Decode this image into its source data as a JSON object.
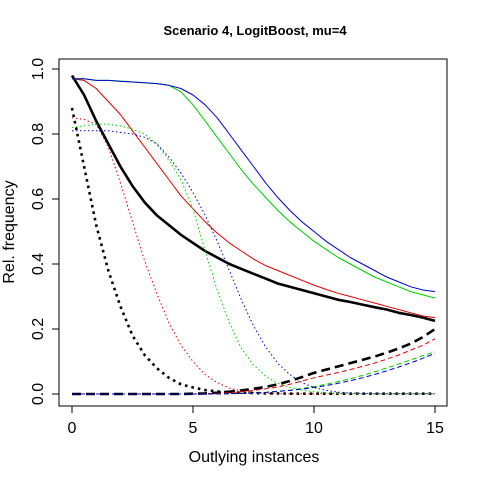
{
  "chart_data": {
    "type": "line",
    "title": "Scenario 4, LogitBoost, mu=4",
    "xlabel": "Outlying instances",
    "ylabel": "Rel. frequency",
    "xlim": [
      0,
      15
    ],
    "ylim": [
      0,
      1
    ],
    "xticks": [
      0,
      5,
      10,
      15
    ],
    "yticks": [
      0.0,
      0.2,
      0.4,
      0.6,
      0.8,
      1.0
    ],
    "xtick_labels": [
      "0",
      "5",
      "10",
      "15"
    ],
    "ytick_labels": [
      "0.0",
      "0.2",
      "0.4",
      "0.6",
      "0.8",
      "1.0"
    ],
    "grid": false,
    "legend": "none",
    "x": [
      0,
      0.5,
      1,
      1.5,
      2,
      2.5,
      3,
      3.5,
      4,
      4.5,
      5,
      5.5,
      6,
      6.5,
      7,
      7.5,
      8,
      8.5,
      9,
      9.5,
      10,
      10.5,
      11,
      11.5,
      12,
      12.5,
      13,
      13.5,
      14,
      14.5,
      15
    ],
    "series": [
      {
        "color": "#000000",
        "style": "solid",
        "weight": "thick",
        "values": [
          0.98,
          0.92,
          0.84,
          0.77,
          0.7,
          0.64,
          0.59,
          0.55,
          0.52,
          0.49,
          0.465,
          0.44,
          0.42,
          0.4,
          0.385,
          0.37,
          0.355,
          0.34,
          0.33,
          0.32,
          0.31,
          0.3,
          0.29,
          0.283,
          0.275,
          0.267,
          0.26,
          0.25,
          0.243,
          0.235,
          0.225
        ]
      },
      {
        "color": "#000000",
        "style": "dotted",
        "weight": "thick",
        "values": [
          0.88,
          0.7,
          0.52,
          0.38,
          0.27,
          0.18,
          0.12,
          0.08,
          0.05,
          0.03,
          0.02,
          0.012,
          0.008,
          0.005,
          0.004,
          0.003,
          0.002,
          0.002,
          0.001,
          0.001,
          0.001,
          0.001,
          0.001,
          0.001,
          0.001,
          0.001,
          0.001,
          0.001,
          0.001,
          0.001,
          0.001
        ]
      },
      {
        "color": "#000000",
        "style": "dashed",
        "weight": "thick",
        "values": [
          0,
          0,
          0,
          0,
          0,
          0,
          0,
          0,
          0,
          0,
          0.001,
          0.002,
          0.004,
          0.007,
          0.011,
          0.016,
          0.022,
          0.03,
          0.04,
          0.052,
          0.065,
          0.075,
          0.085,
          0.095,
          0.105,
          0.115,
          0.127,
          0.14,
          0.155,
          0.175,
          0.2
        ]
      },
      {
        "color": "#dd0000",
        "style": "solid",
        "weight": "thin",
        "values": [
          0.97,
          0.965,
          0.94,
          0.9,
          0.86,
          0.81,
          0.76,
          0.71,
          0.66,
          0.61,
          0.57,
          0.53,
          0.495,
          0.465,
          0.44,
          0.415,
          0.395,
          0.38,
          0.365,
          0.35,
          0.335,
          0.322,
          0.31,
          0.3,
          0.29,
          0.28,
          0.27,
          0.26,
          0.25,
          0.24,
          0.235
        ]
      },
      {
        "color": "#dd0000",
        "style": "dotted",
        "weight": "thin",
        "values": [
          0.85,
          0.845,
          0.83,
          0.76,
          0.65,
          0.53,
          0.41,
          0.31,
          0.22,
          0.15,
          0.1,
          0.06,
          0.035,
          0.018,
          0.009,
          0.005,
          0.002,
          0.001,
          0.001,
          0.001,
          0.001,
          0.001,
          0.001,
          0.001,
          0.001,
          0.001,
          0.001,
          0.001,
          0.001,
          0.001,
          0.001
        ]
      },
      {
        "color": "#dd0000",
        "style": "dashed",
        "weight": "thin",
        "values": [
          0,
          0,
          0,
          0,
          0,
          0,
          0,
          0,
          0,
          0,
          0,
          0.001,
          0.002,
          0.004,
          0.007,
          0.011,
          0.016,
          0.022,
          0.03,
          0.04,
          0.05,
          0.058,
          0.066,
          0.075,
          0.085,
          0.095,
          0.107,
          0.12,
          0.135,
          0.15,
          0.17
        ]
      },
      {
        "color": "#00cc00",
        "style": "solid",
        "weight": "thin",
        "values": [
          0.97,
          0.97,
          0.965,
          0.965,
          0.963,
          0.96,
          0.958,
          0.955,
          0.95,
          0.93,
          0.89,
          0.84,
          0.79,
          0.74,
          0.69,
          0.645,
          0.605,
          0.565,
          0.53,
          0.5,
          0.47,
          0.445,
          0.42,
          0.4,
          0.38,
          0.36,
          0.345,
          0.33,
          0.315,
          0.305,
          0.295
        ]
      },
      {
        "color": "#00cc00",
        "style": "dotted",
        "weight": "thin",
        "values": [
          0.82,
          0.825,
          0.83,
          0.83,
          0.825,
          0.815,
          0.8,
          0.77,
          0.72,
          0.66,
          0.57,
          0.44,
          0.32,
          0.22,
          0.14,
          0.09,
          0.055,
          0.033,
          0.02,
          0.012,
          0.007,
          0.004,
          0.002,
          0.001,
          0.001,
          0.001,
          0.001,
          0.001,
          0.001,
          0.001,
          0.001
        ]
      },
      {
        "color": "#00cc00",
        "style": "dashed",
        "weight": "thin",
        "values": [
          0,
          0,
          0,
          0,
          0,
          0,
          0,
          0,
          0,
          0,
          0,
          0,
          0,
          0.001,
          0.002,
          0.003,
          0.005,
          0.008,
          0.012,
          0.017,
          0.023,
          0.03,
          0.038,
          0.047,
          0.057,
          0.068,
          0.08,
          0.092,
          0.105,
          0.118,
          0.13
        ]
      },
      {
        "color": "#0000cc",
        "style": "solid",
        "weight": "thin",
        "values": [
          0.97,
          0.97,
          0.965,
          0.965,
          0.962,
          0.96,
          0.958,
          0.955,
          0.95,
          0.94,
          0.92,
          0.89,
          0.85,
          0.8,
          0.75,
          0.7,
          0.65,
          0.605,
          0.565,
          0.53,
          0.5,
          0.47,
          0.445,
          0.42,
          0.4,
          0.38,
          0.36,
          0.345,
          0.33,
          0.32,
          0.315
        ]
      },
      {
        "color": "#0000cc",
        "style": "dotted",
        "weight": "thin",
        "values": [
          0.81,
          0.81,
          0.81,
          0.81,
          0.805,
          0.8,
          0.79,
          0.77,
          0.73,
          0.68,
          0.62,
          0.55,
          0.47,
          0.38,
          0.29,
          0.21,
          0.145,
          0.095,
          0.06,
          0.035,
          0.02,
          0.011,
          0.006,
          0.003,
          0.002,
          0.001,
          0.001,
          0.001,
          0.001,
          0.001,
          0.001
        ]
      },
      {
        "color": "#0000cc",
        "style": "dashed",
        "weight": "thin",
        "values": [
          0,
          0,
          0,
          0,
          0,
          0,
          0,
          0,
          0,
          0,
          0,
          0,
          0,
          0.001,
          0.002,
          0.003,
          0.005,
          0.008,
          0.011,
          0.015,
          0.02,
          0.026,
          0.033,
          0.041,
          0.05,
          0.06,
          0.071,
          0.083,
          0.096,
          0.11,
          0.125
        ]
      }
    ]
  }
}
